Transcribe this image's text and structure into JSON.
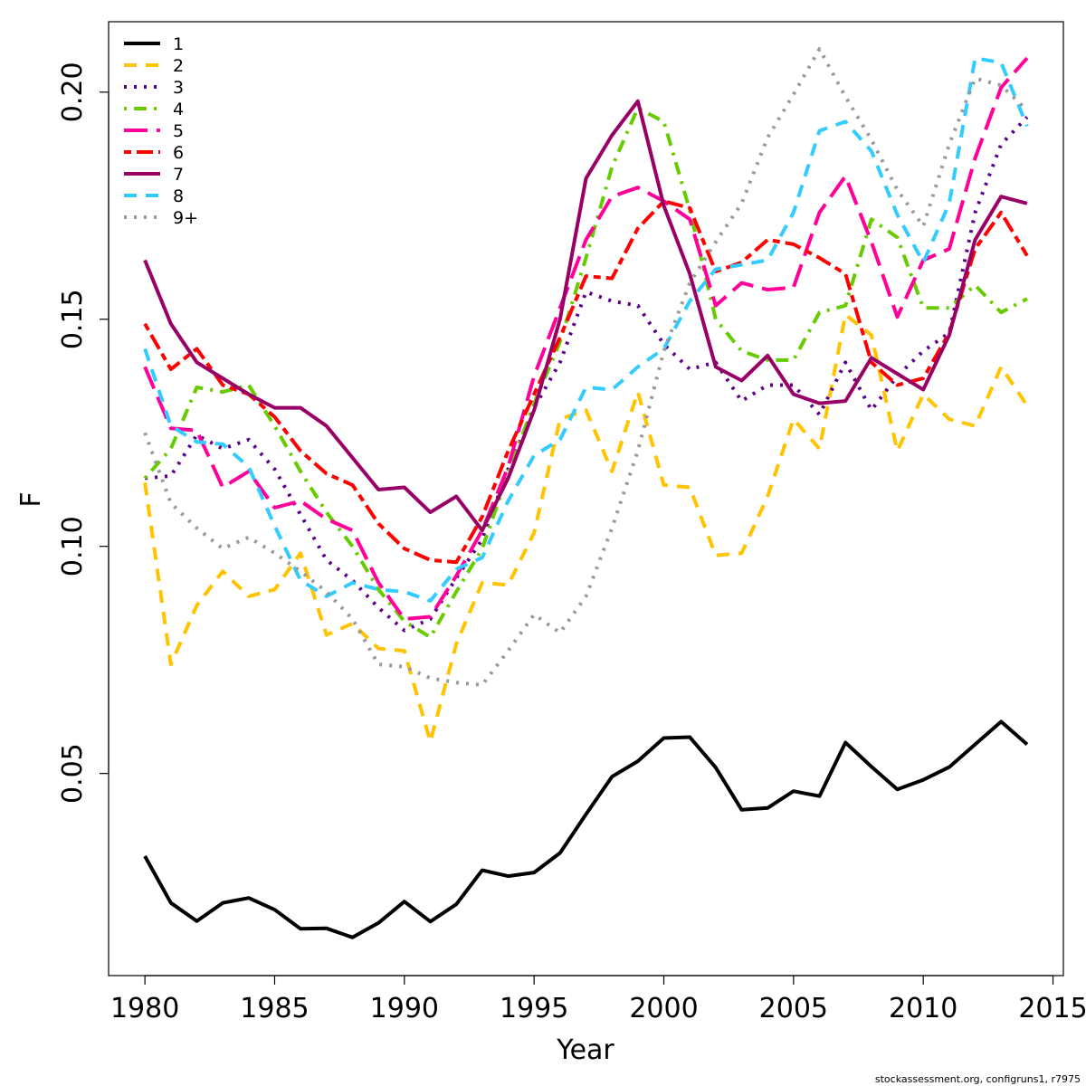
{
  "chart_data": {
    "type": "line",
    "xlabel": "Year",
    "ylabel": "F",
    "xlim": [
      1978.6,
      2015.4
    ],
    "ylim": [
      0.0055,
      0.2155
    ],
    "x_ticks": [
      1980,
      1985,
      1990,
      1995,
      2000,
      2005,
      2010,
      2015
    ],
    "x_tick_labels": [
      "1980",
      "1985",
      "1990",
      "1995",
      "2000",
      "2005",
      "2010",
      "2015"
    ],
    "y_ticks": [
      0.05,
      0.1,
      0.15,
      0.2
    ],
    "y_tick_labels": [
      "0.05",
      "0.10",
      "0.15",
      "0.20"
    ],
    "grid": false,
    "legend_position": "top-left",
    "footnote": "stockassessment.org, configruns1, r7975",
    "x": [
      1980,
      1981,
      1982,
      1983,
      1984,
      1985,
      1986,
      1987,
      1988,
      1989,
      1990,
      1991,
      1992,
      1993,
      1994,
      1995,
      1996,
      1997,
      1998,
      1999,
      2000,
      2001,
      2002,
      2003,
      2004,
      2005,
      2006,
      2007,
      2008,
      2009,
      2010,
      2011,
      2012,
      2013,
      2014
    ],
    "series": [
      {
        "name": "1",
        "color": "#000000",
        "dash": "solid",
        "values": [
          0.0318,
          0.0215,
          0.0175,
          0.0215,
          0.0226,
          0.02,
          0.0158,
          0.0159,
          0.0139,
          0.0171,
          0.0218,
          0.0174,
          0.0212,
          0.0287,
          0.0274,
          0.0282,
          0.0325,
          0.041,
          0.0493,
          0.0527,
          0.0578,
          0.058,
          0.0513,
          0.042,
          0.0424,
          0.0461,
          0.045,
          0.0568,
          0.0515,
          0.0465,
          0.0486,
          0.0514,
          0.0564,
          0.0614,
          0.0564
        ]
      },
      {
        "name": "2",
        "color": "#ffc300",
        "dash": "dashed",
        "values": [
          0.114,
          0.074,
          0.087,
          0.0945,
          0.089,
          0.0905,
          0.0985,
          0.0805,
          0.083,
          0.0775,
          0.077,
          0.057,
          0.0785,
          0.092,
          0.0915,
          0.103,
          0.128,
          0.13,
          0.1165,
          0.134,
          0.1135,
          0.113,
          0.098,
          0.0985,
          0.111,
          0.128,
          0.1215,
          0.151,
          0.1465,
          0.121,
          0.1335,
          0.128,
          0.1265,
          0.1395,
          0.131
        ]
      },
      {
        "name": "3",
        "color": "#5c008c",
        "dash": "dotted",
        "values": [
          0.115,
          0.1155,
          0.1245,
          0.1215,
          0.1235,
          0.117,
          0.107,
          0.097,
          0.0925,
          0.0865,
          0.0815,
          0.084,
          0.093,
          0.1015,
          0.117,
          0.1305,
          0.1405,
          0.156,
          0.154,
          0.153,
          0.1445,
          0.139,
          0.1405,
          0.132,
          0.1355,
          0.1355,
          0.129,
          0.1405,
          0.13,
          0.1375,
          0.143,
          0.147,
          0.1735,
          0.1885,
          0.1945
        ]
      },
      {
        "name": "4",
        "color": "#66cc00",
        "dash": "dotdash",
        "values": [
          0.115,
          0.1215,
          0.135,
          0.134,
          0.1355,
          0.1265,
          0.1165,
          0.1075,
          0.1,
          0.0905,
          0.0835,
          0.08,
          0.09,
          0.0995,
          0.116,
          0.1315,
          0.145,
          0.1635,
          0.1835,
          0.1965,
          0.1935,
          0.174,
          0.15,
          0.143,
          0.141,
          0.141,
          0.1515,
          0.153,
          0.172,
          0.168,
          0.1525,
          0.1525,
          0.1575,
          0.1515,
          0.1545
        ]
      },
      {
        "name": "5",
        "color": "#ff0099",
        "dash": "longdash",
        "values": [
          0.1395,
          0.126,
          0.1255,
          0.113,
          0.1165,
          0.1085,
          0.11,
          0.106,
          0.1035,
          0.092,
          0.084,
          0.0845,
          0.0935,
          0.1035,
          0.1175,
          0.1375,
          0.1525,
          0.1675,
          0.177,
          0.179,
          0.176,
          0.172,
          0.153,
          0.158,
          0.1565,
          0.157,
          0.1735,
          0.1815,
          0.167,
          0.1505,
          0.163,
          0.1655,
          0.1855,
          0.201,
          0.2075
        ]
      },
      {
        "name": "6",
        "color": "#ff0000",
        "dash": "twodash",
        "values": [
          0.149,
          0.139,
          0.1435,
          0.1355,
          0.1335,
          0.1285,
          0.121,
          0.116,
          0.1135,
          0.105,
          0.0995,
          0.097,
          0.0965,
          0.1065,
          0.121,
          0.1335,
          0.146,
          0.1595,
          0.159,
          0.17,
          0.176,
          0.1745,
          0.1605,
          0.1625,
          0.1675,
          0.1665,
          0.1635,
          0.16,
          0.1405,
          0.1355,
          0.137,
          0.147,
          0.1655,
          0.1735,
          0.164
        ]
      },
      {
        "name": "7",
        "color": "#990066",
        "dash": "solid",
        "values": [
          0.163,
          0.149,
          0.1405,
          0.137,
          0.1335,
          0.1305,
          0.1305,
          0.1265,
          0.1195,
          0.1125,
          0.113,
          0.1075,
          0.111,
          0.1035,
          0.115,
          0.13,
          0.15,
          0.181,
          0.1905,
          0.198,
          0.175,
          0.16,
          0.1395,
          0.1365,
          0.142,
          0.1335,
          0.1315,
          0.132,
          0.1415,
          0.138,
          0.1345,
          0.1465,
          0.1675,
          0.177,
          0.1755
        ]
      },
      {
        "name": "8",
        "color": "#33ccff",
        "dash": "dashed",
        "values": [
          0.1435,
          0.1265,
          0.123,
          0.1225,
          0.1175,
          0.1045,
          0.0925,
          0.089,
          0.092,
          0.0905,
          0.09,
          0.088,
          0.095,
          0.0975,
          0.11,
          0.12,
          0.1235,
          0.135,
          0.1345,
          0.1395,
          0.1435,
          0.154,
          0.161,
          0.162,
          0.163,
          0.1735,
          0.1915,
          0.1935,
          0.187,
          0.173,
          0.1625,
          0.1755,
          0.2075,
          0.2065,
          0.1925
        ]
      },
      {
        "name": "9+",
        "color": "#999999",
        "dash": "dotted",
        "values": [
          0.125,
          0.1095,
          0.104,
          0.0995,
          0.102,
          0.0985,
          0.0945,
          0.09,
          0.084,
          0.074,
          0.0735,
          0.071,
          0.07,
          0.0695,
          0.077,
          0.085,
          0.081,
          0.089,
          0.104,
          0.121,
          0.143,
          0.158,
          0.167,
          0.1755,
          0.19,
          0.1995,
          0.2095,
          0.199,
          0.1895,
          0.1785,
          0.1705,
          0.1885,
          0.203,
          0.2015,
          0.196
        ]
      }
    ]
  }
}
